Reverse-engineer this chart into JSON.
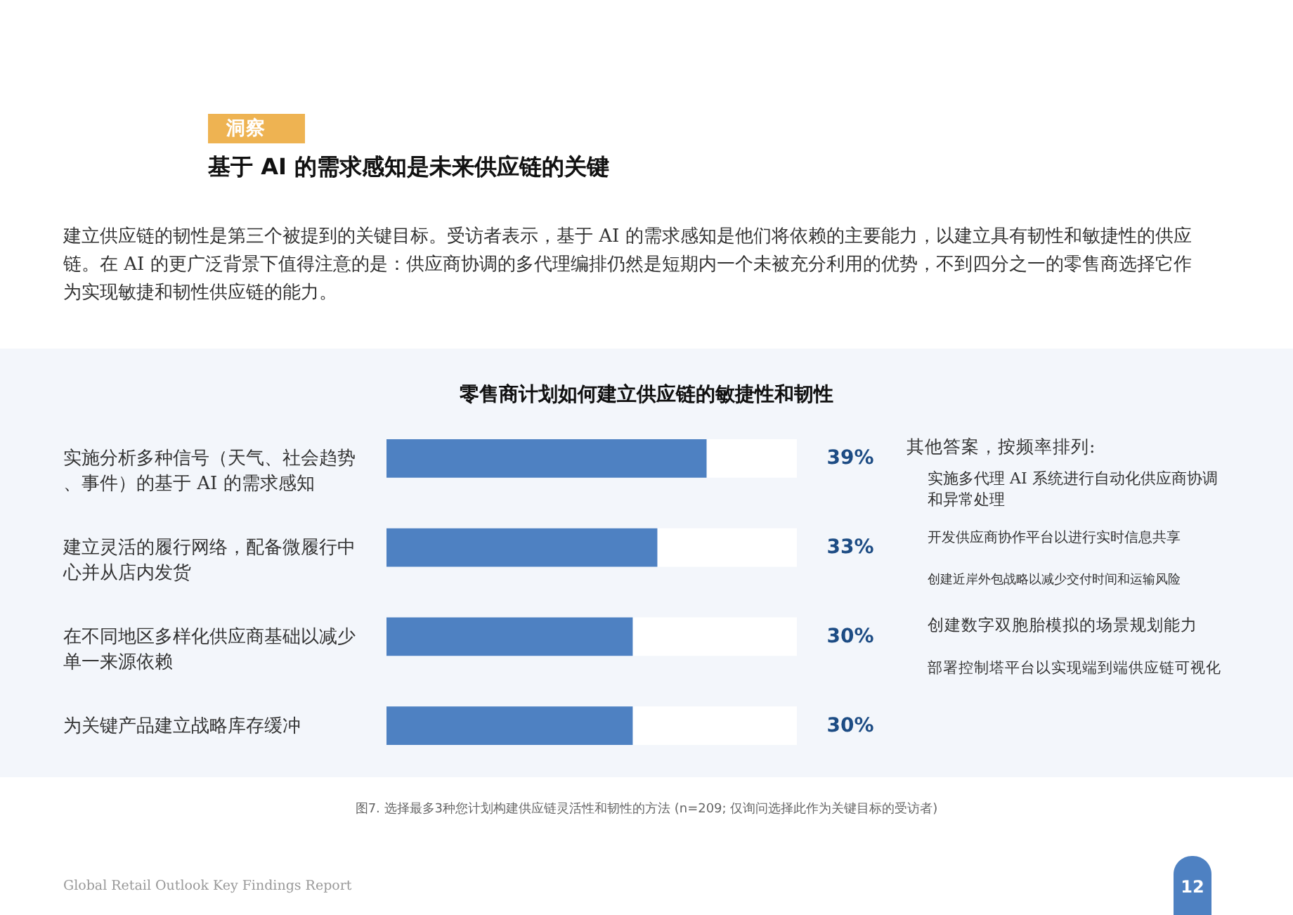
{
  "chart_data": {
    "type": "bar",
    "orientation": "horizontal",
    "title": "零售商计划如何建立供应链的敏捷性和韧性",
    "categories": [
      "实施分析多种信号（天气、社会趋势、事件）的基于 AI 的需求感知",
      "建立灵活的履行网络，配备微履行中心并从店内发货",
      "在不同地区多样化供应商基础以减少单一来源依赖",
      "为关键产品建立战略库存缓冲"
    ],
    "values": [
      39,
      33,
      30,
      30
    ],
    "color": "#4e81c2",
    "xlim": [
      0,
      50
    ],
    "value_labels": [
      "39%",
      "33%",
      "30%",
      "30%"
    ],
    "tick_labels": "y",
    "annotations": [
      "洞察",
      "基于 AI 的需求感知是未来供应链的关键",
      "建立供应链的韧性是第三个被提到的关键目标。受访者表示，基于 AI 的需求感知是他们将依赖的主要能力，以建立具有韧性和敏捷性的供应链。在 AI 的更广泛背景下值得注意的是：供应商协调的多代理编排仍然是短期内一个未被充分利用的优势，不到四分之一的零售商选择它作为实现敏捷和韧性供应链的能力。",
      "其他答案，按频率排列:",
      "实施多代理 AI 系统进行自动化供应商协调和异常处理",
      "开发供应商协作平台以进行实时信息共享",
      "创建近岸外包战略以减少交付时间和运输风险",
      "创建数字双胞胎模拟的场景规划能力",
      "部署控制塔平台以实现端到端供应链可视化",
      "图7. 选择最多3种您计划构建供应链灵活性和韧性的方法 (n=209; 仅询问选择此作为关键目标的受访者)",
      "Global Retail Outlook Key Findings Report",
      "12"
    ]
  }
}
